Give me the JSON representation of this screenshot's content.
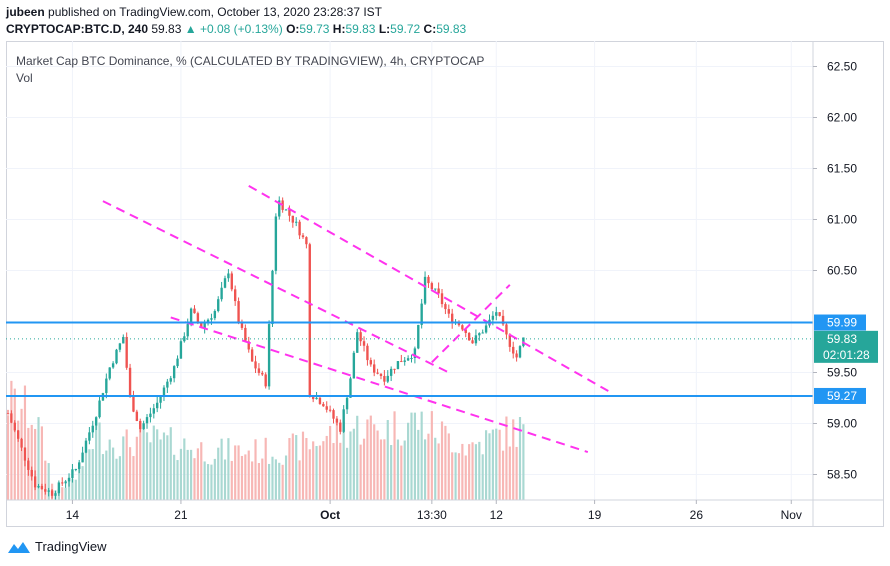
{
  "header": {
    "author": "jubeen",
    "published": "published on TradingView.com, October 13, 2020 23:28:37 IST",
    "symbol": "CRYPTOCAP:BTC.D, 240",
    "last": "59.83",
    "change": "+0.08 (+0.13%)",
    "o_label": "O:",
    "o": "59.73",
    "h_label": "H:",
    "h": "59.83",
    "l_label": "L:",
    "l": "59.72",
    "c_label": "C:",
    "c": "59.83"
  },
  "legend": {
    "title": "Market Cap BTC Dominance, % (CALCULATED BY TRADINGVIEW), 4h, CRYPTOCAP",
    "vol": "Vol"
  },
  "footer": {
    "brand": "TradingView"
  },
  "colors": {
    "up": "#26a69a",
    "down": "#ef5350",
    "vol_up": "#a9d8d2",
    "vol_down": "#f7b7b5",
    "trend": "#ff33ee",
    "level": "#2196f3",
    "last": "#26a69a"
  },
  "chart_data": {
    "type": "candlestick",
    "title": "Market Cap BTC Dominance, % (CALCULATED BY TRADINGVIEW), 4h, CRYPTOCAP",
    "ylim": [
      58.25,
      62.75
    ],
    "y_ticks": [
      "62.50",
      "62.00",
      "61.50",
      "61.00",
      "60.50",
      "59.50",
      "59.00",
      "58.50"
    ],
    "y_tick_values": [
      62.5,
      62.0,
      61.5,
      61.0,
      60.5,
      59.5,
      59.0,
      58.5
    ],
    "x_ticks": [
      "14",
      "21",
      "Oct",
      "13:30",
      "12",
      "19",
      "26",
      "Nov"
    ],
    "x_tick_bars": [
      19,
      51,
      95,
      125,
      144,
      173,
      203,
      231
    ],
    "bars_total": 238,
    "horizontal_levels": [
      {
        "value": 59.99,
        "label": "59.99"
      },
      {
        "value": 59.27,
        "label": "59.27"
      }
    ],
    "last_price": {
      "value": 59.83,
      "label": "59.83",
      "countdown": "02:01:28"
    },
    "trend_lines": [
      {
        "start": [
          28,
          61.18
        ],
        "end": [
          130,
          59.5
        ]
      },
      {
        "start": [
          48,
          60.04
        ],
        "end": [
          171,
          58.72
        ]
      },
      {
        "start": [
          71,
          61.33
        ],
        "end": [
          178,
          59.3
        ]
      },
      {
        "start": [
          125,
          59.6
        ],
        "end": [
          148,
          60.36
        ]
      }
    ],
    "path_points": [
      [
        0,
        59.1
      ],
      [
        4,
        58.75
      ],
      [
        8,
        58.4
      ],
      [
        13,
        58.32
      ],
      [
        20,
        58.55
      ],
      [
        26,
        59.1
      ],
      [
        30,
        59.55
      ],
      [
        34,
        59.85
      ],
      [
        36,
        59.25
      ],
      [
        39,
        58.95
      ],
      [
        44,
        59.2
      ],
      [
        49,
        59.55
      ],
      [
        54,
        60.1
      ],
      [
        57,
        59.95
      ],
      [
        61,
        60.1
      ],
      [
        65,
        60.5
      ],
      [
        68,
        60.0
      ],
      [
        72,
        59.6
      ],
      [
        76,
        59.4
      ],
      [
        79,
        61.05
      ],
      [
        80,
        61.18
      ],
      [
        85,
        60.95
      ],
      [
        88,
        60.75
      ],
      [
        89,
        59.3
      ],
      [
        93,
        59.2
      ],
      [
        98,
        58.95
      ],
      [
        101,
        59.45
      ],
      [
        103,
        59.9
      ],
      [
        107,
        59.55
      ],
      [
        111,
        59.45
      ],
      [
        115,
        59.6
      ],
      [
        120,
        59.7
      ],
      [
        121,
        59.95
      ],
      [
        123,
        60.4
      ],
      [
        127,
        60.25
      ],
      [
        130,
        60.05
      ],
      [
        134,
        59.95
      ],
      [
        137,
        59.8
      ],
      [
        141,
        59.95
      ],
      [
        144,
        60.1
      ],
      [
        147,
        59.85
      ],
      [
        150,
        59.65
      ],
      [
        152,
        59.83
      ]
    ],
    "volume_profile": [
      [
        0,
        0.45
      ],
      [
        8,
        0.38
      ],
      [
        14,
        0.04
      ],
      [
        20,
        0.1
      ],
      [
        26,
        0.3
      ],
      [
        34,
        0.25
      ],
      [
        40,
        0.28
      ],
      [
        50,
        0.25
      ],
      [
        60,
        0.22
      ],
      [
        70,
        0.22
      ],
      [
        80,
        0.22
      ],
      [
        86,
        0.24
      ],
      [
        90,
        0.26
      ],
      [
        96,
        0.3
      ],
      [
        104,
        0.33
      ],
      [
        112,
        0.32
      ],
      [
        120,
        0.36
      ],
      [
        128,
        0.3
      ],
      [
        136,
        0.24
      ],
      [
        146,
        0.3
      ],
      [
        152,
        0.32
      ]
    ]
  }
}
